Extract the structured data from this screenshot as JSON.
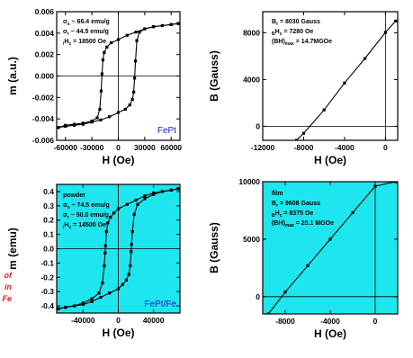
{
  "colors": {
    "panel_bg_top": "#ffffff",
    "panel_bg_bottom": "#1ee6ee",
    "curve": "#000000",
    "sample_label": "#1a1acc",
    "side_text": "#e0201a"
  },
  "side_fragment": [
    "of",
    "in",
    "Fe"
  ],
  "chart_data": [
    {
      "id": "fept-mh",
      "type": "line",
      "sample_label": "FePt",
      "xlabel": "H (Oe)",
      "ylabel": "m (a.u.)",
      "xlim": [
        -70000,
        70000
      ],
      "ylim": [
        -0.006,
        0.006
      ],
      "x_ticks": [
        -60000,
        -30000,
        0,
        30000,
        60000
      ],
      "x_tick_labels": [
        "-60000",
        "-30000",
        "0",
        "30000",
        "60000"
      ],
      "y_ticks": [
        -0.006,
        -0.004,
        -0.002,
        0.0,
        0.002,
        0.004,
        0.006
      ],
      "y_tick_labels": [
        "-0.006",
        "-0.004",
        "-0.002",
        "0.000",
        "0.002",
        "0.004",
        "0.006"
      ],
      "annotations": [
        {
          "pre": "σ",
          "sub": "s",
          "post": " ~ 66.4 emu/g"
        },
        {
          "pre": "σ",
          "sub": "r",
          "post": " ~ 44.5 emu/g"
        },
        {
          "pre": "",
          "sub": "i",
          "post": "H",
          "sub2": "c",
          "post2": " = 18500 Oe"
        }
      ],
      "series": [
        {
          "x": [
            -68000,
            -60000,
            -50000,
            -40000,
            -30000,
            -24000,
            -21000,
            -19500,
            -18500,
            -17500,
            -16000,
            -13000,
            -8000,
            0,
            10000,
            20000,
            30000,
            40000,
            50000,
            60000,
            68000
          ],
          "y": [
            -0.0048,
            -0.0046,
            -0.0045,
            -0.0044,
            -0.0042,
            -0.0039,
            -0.0031,
            -0.0014,
            0.0002,
            0.0015,
            0.0022,
            0.0027,
            0.0031,
            0.0034,
            0.0038,
            0.0041,
            0.0044,
            0.0046,
            0.0047,
            0.0048,
            0.0049
          ]
        },
        {
          "x": [
            68000,
            60000,
            50000,
            40000,
            30000,
            24000,
            21000,
            19500,
            18500,
            17500,
            16000,
            13000,
            8000,
            0,
            -10000,
            -20000,
            -30000,
            -40000,
            -50000,
            -60000,
            -68000
          ],
          "y": [
            0.0049,
            0.0048,
            0.0047,
            0.0046,
            0.0044,
            0.0041,
            0.0033,
            0.0014,
            -0.0002,
            -0.0015,
            -0.0022,
            -0.0027,
            -0.0031,
            -0.0034,
            -0.0038,
            -0.0041,
            -0.0043,
            -0.0045,
            -0.0046,
            -0.0047,
            -0.0048
          ]
        }
      ]
    },
    {
      "id": "fept-bh",
      "type": "line",
      "xlabel": "H (Oe)",
      "ylabel": "B (Gauss)",
      "xlim": [
        -12000,
        1200
      ],
      "ylim": [
        -1200,
        9800
      ],
      "x_ticks": [
        -12000,
        -8000,
        -4000,
        0
      ],
      "x_tick_labels": [
        "-12000",
        "-8000",
        "-4000",
        "0"
      ],
      "y_ticks": [
        0,
        4000,
        8000
      ],
      "y_tick_labels": [
        "0",
        "4000",
        "8000"
      ],
      "annotations": [
        {
          "pre": "B",
          "sub": "r",
          "post": " = 8030 Gauss"
        },
        {
          "pre": "",
          "sub": "B",
          "post": "H",
          "sub2": "c",
          "post2": " = 7280 Oe"
        },
        {
          "pre": "(BH)",
          "sub": "max",
          "post": " = 14.7MGOe"
        }
      ],
      "series": [
        {
          "x": [
            -8700,
            -8000,
            -6000,
            -4000,
            -2000,
            0,
            1000
          ],
          "y": [
            -1200,
            -600,
            1400,
            3700,
            5800,
            8030,
            9000
          ]
        }
      ]
    },
    {
      "id": "feptfe-mh",
      "type": "line",
      "sample_label": "FePt/Fe",
      "xlabel": "H (Oe)",
      "ylabel": "m (emu)",
      "xlim": [
        -70000,
        70000
      ],
      "ylim": [
        -0.45,
        0.45
      ],
      "x_ticks": [
        -40000,
        0,
        40000
      ],
      "x_tick_labels": [
        "-40000",
        "0",
        "40000"
      ],
      "y_ticks": [
        -0.4,
        -0.3,
        -0.2,
        -0.1,
        0.0,
        0.1,
        0.2,
        0.3,
        0.4
      ],
      "y_tick_labels": [
        "-0.4",
        "-0.3",
        "-0.2",
        "-0.1",
        "0.0",
        "0.1",
        "0.2",
        "0.3",
        "0.4"
      ],
      "annotations": [
        {
          "pre": "powder",
          "sub": "",
          "post": ""
        },
        {
          "pre": "σ",
          "sub": "s",
          "post": " ~ 74.5 emu/g"
        },
        {
          "pre": "σ",
          "sub": "r",
          "post": " ~ 50.0 emu/g"
        },
        {
          "pre": "",
          "sub": "i",
          "post": "H",
          "sub2": "c",
          "post2": " = 14500 Oe"
        }
      ],
      "series": [
        {
          "x": [
            -68000,
            -60000,
            -50000,
            -40000,
            -30000,
            -22000,
            -18000,
            -16000,
            -15000,
            -14500,
            -13500,
            -12000,
            -9000,
            -5000,
            0,
            10000,
            20000,
            30000,
            40000,
            50000,
            60000,
            68000
          ],
          "y": [
            -0.42,
            -0.41,
            -0.4,
            -0.38,
            -0.35,
            -0.31,
            -0.24,
            -0.12,
            -0.03,
            0.02,
            0.12,
            0.18,
            0.22,
            0.25,
            0.28,
            0.31,
            0.34,
            0.37,
            0.39,
            0.4,
            0.41,
            0.42
          ]
        },
        {
          "x": [
            68000,
            60000,
            50000,
            40000,
            30000,
            22000,
            18000,
            16000,
            15000,
            14500,
            13500,
            12000,
            9000,
            5000,
            0,
            -10000,
            -20000,
            -30000,
            -40000,
            -50000,
            -60000,
            -68000
          ],
          "y": [
            0.42,
            0.41,
            0.4,
            0.38,
            0.35,
            0.31,
            0.24,
            0.12,
            0.03,
            -0.02,
            -0.12,
            -0.18,
            -0.22,
            -0.25,
            -0.28,
            -0.31,
            -0.34,
            -0.37,
            -0.39,
            -0.4,
            -0.41,
            -0.42
          ]
        }
      ]
    },
    {
      "id": "feptfe-bh",
      "type": "line",
      "xlabel": "H (Oe)",
      "ylabel": "B (Gauss)",
      "xlim": [
        -10000,
        2000
      ],
      "ylim": [
        -1500,
        10000
      ],
      "x_ticks": [
        -8000,
        -4000,
        0
      ],
      "x_tick_labels": [
        "-8000",
        "-4000",
        "0"
      ],
      "y_ticks": [
        0,
        5000,
        10000
      ],
      "y_tick_labels": [
        "0",
        "5000",
        "10000"
      ],
      "annotations": [
        {
          "pre": "film",
          "sub": "",
          "post": ""
        },
        {
          "pre": "B",
          "sub": "r",
          "post": " = 9608 Gauss"
        },
        {
          "pre": "",
          "sub": "B",
          "post": "H",
          "sub2": "c",
          "post2": " = 8375 Oe"
        },
        {
          "pre": "(BH)",
          "sub": "max",
          "post": " = 20.1 MGOe"
        }
      ],
      "series": [
        {
          "x": [
            -9500,
            -8000,
            -6000,
            -4000,
            -2000,
            0,
            1800
          ],
          "y": [
            -1500,
            400,
            2700,
            5000,
            7300,
            9608,
            10000
          ]
        }
      ]
    }
  ]
}
